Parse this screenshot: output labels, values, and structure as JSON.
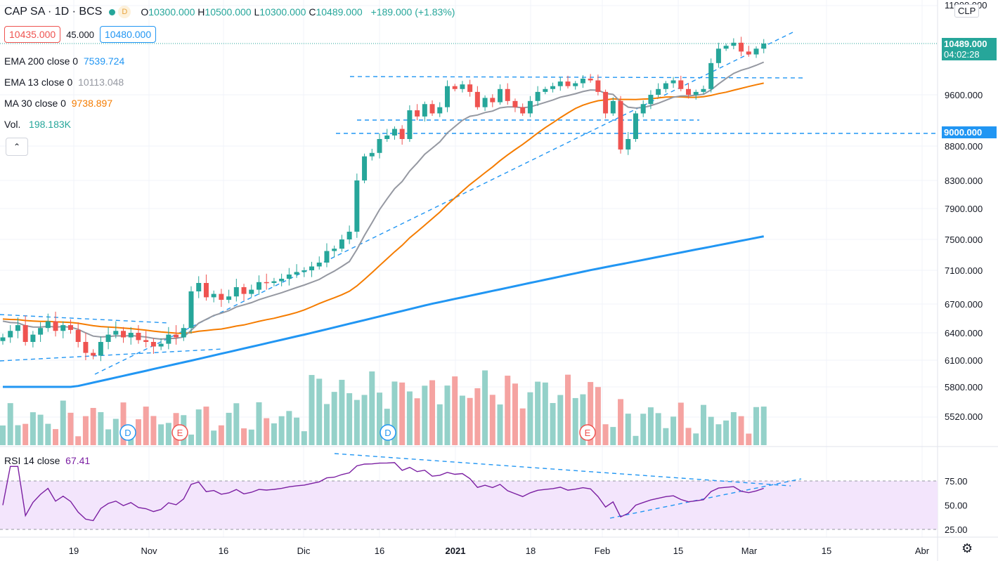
{
  "header": {
    "symbol": "CAP SA · 1D · BCS",
    "badge": "D",
    "open_label": "O",
    "open": "10300.000",
    "high_label": "H",
    "high": "10500.000",
    "low_label": "L",
    "low": "10300.000",
    "close_label": "C",
    "close": "10489.000",
    "change": "+189.000 (+1.83%)"
  },
  "quote": {
    "bid": "10435.000",
    "spread": "45.000",
    "ask": "10480.000"
  },
  "indicators": [
    {
      "label": "EMA 200 close 0",
      "value": "7539.724",
      "color": "#2196f3"
    },
    {
      "label": "EMA 13 close 0",
      "value": "10113.048",
      "color": "#9598a1"
    },
    {
      "label": "MA 30 close 0",
      "value": "9738.897",
      "color": "#f57c00"
    },
    {
      "label": "Vol.",
      "value": "198.183K",
      "color": "#26a69a"
    }
  ],
  "rsi_legend": {
    "label": "RSI 14 close",
    "value": "67.41",
    "color": "#7b1fa2"
  },
  "currency": "CLP",
  "last_price": {
    "price": "10489.000",
    "countdown": "04:02:28"
  },
  "level_label": "9000.000",
  "colors": {
    "up": "#26a69a",
    "down": "#ef5350",
    "up_vol": "#94d1c9",
    "down_vol": "#f5a3a1",
    "trend": "#2196f3",
    "rsi_line": "#7b1fa2",
    "rsi_band": "#f3e5fc"
  },
  "chart_data": {
    "type": "candlestick",
    "price_axis_ticks": [
      "11000.000",
      "9600.000",
      "8800.000",
      "8300.000",
      "7900.000",
      "7500.000",
      "7100.000",
      "6700.000",
      "6400.000",
      "6100.000",
      "5800.000",
      "5520.000"
    ],
    "rsi_axis_ticks": [
      "75.00",
      "50.00",
      "25.00"
    ],
    "x_tick_labels": [
      "19",
      "Nov",
      "16",
      "Dic",
      "16",
      "2021",
      "18",
      "Feb",
      "15",
      "Mar",
      "15",
      "Abr"
    ],
    "event_markers": [
      {
        "label": "D",
        "type": "dividend"
      },
      {
        "label": "E",
        "type": "earnings"
      },
      {
        "label": "D",
        "type": "dividend"
      },
      {
        "label": "E",
        "type": "earnings"
      }
    ],
    "closes": [
      6350,
      6420,
      6480,
      6300,
      6380,
      6450,
      6520,
      6420,
      6480,
      6430,
      6300,
      6180,
      6150,
      6300,
      6380,
      6420,
      6350,
      6400,
      6320,
      6300,
      6250,
      6280,
      6380,
      6350,
      6450,
      6850,
      6950,
      6780,
      6820,
      6750,
      6790,
      6900,
      6820,
      6870,
      6960,
      6950,
      6970,
      7000,
      7050,
      7080,
      7100,
      7150,
      7200,
      7350,
      7380,
      7500,
      7600,
      8300,
      8650,
      8700,
      8900,
      8950,
      9050,
      8900,
      9350,
      9250,
      9450,
      9300,
      9400,
      9750,
      9700,
      9780,
      9650,
      9400,
      9550,
      9480,
      9700,
      9500,
      9400,
      9300,
      9500,
      9650,
      9700,
      9750,
      9830,
      9750,
      9800,
      9880,
      9850,
      9650,
      9300,
      9500,
      8750,
      8900,
      9300,
      9450,
      9600,
      9700,
      9800,
      9850,
      9700,
      9600,
      9650,
      9700,
      10150,
      10400,
      10450,
      10500,
      10350,
      10300,
      10400,
      10489
    ],
    "ema200_end": 7539.724,
    "ema13_end": 10113.048,
    "ma30_end": 9738.897,
    "volume_last": "198.183K",
    "rsi_last": 67.41,
    "horizontal_levels": [
      9850,
      9400,
      9000
    ],
    "chart_area_note_levels_only": true
  }
}
